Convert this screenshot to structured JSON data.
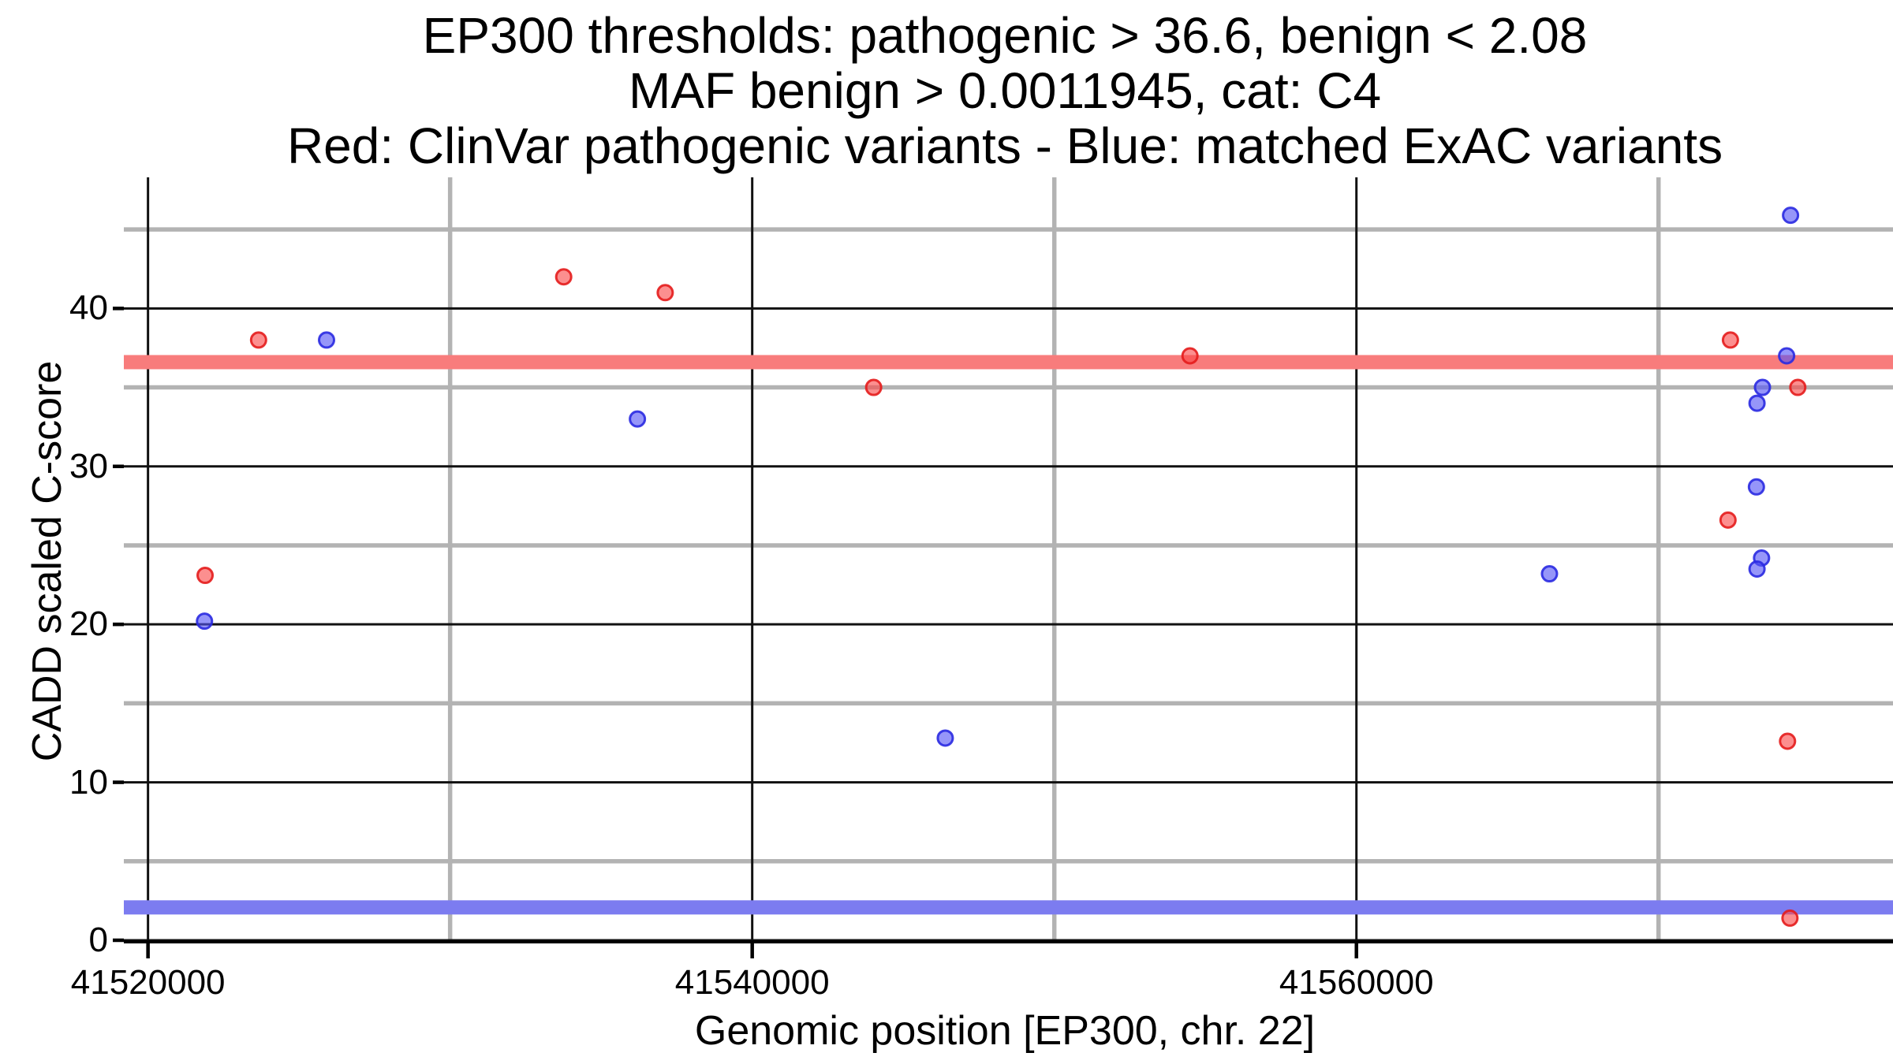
{
  "title": {
    "line1": "EP300 thresholds: pathogenic > 36.6, benign < 2.08",
    "line2": "MAF benign > 0.0011945, cat: C4",
    "line3": "Red: ClinVar pathogenic variants - Blue: matched ExAC variants"
  },
  "thresholds": {
    "pathogenic_cadd": 36.6,
    "benign_cadd": 2.08,
    "maf_benign": 0.0011945,
    "category": "C4",
    "gene": "EP300",
    "chromosome": "22"
  },
  "colors": {
    "pathogenic_band": "#F87C7C",
    "benign_band": "#7C7CF0",
    "red_point_fill": "rgba(250,75,75,0.62)",
    "red_point_stroke": "rgba(228,28,28,0.9)",
    "blue_point_fill": "rgba(85,85,245,0.62)",
    "blue_point_stroke": "rgba(42,42,225,0.9)",
    "major_grid": "#111111",
    "minor_grid": "#b3b3b3",
    "axis_line": "#000000"
  },
  "chart_data": {
    "type": "scatter",
    "title_lines": [
      "EP300 thresholds: pathogenic > 36.6, benign < 2.08",
      "MAF benign > 0.0011945, cat: C4",
      "Red: ClinVar pathogenic variants - Blue: matched ExAC variants"
    ],
    "xlabel": "Genomic position [EP300, chr. 22]",
    "ylabel": "CADD scaled C-score",
    "xlim": [
      41519200,
      41577500
    ],
    "ylim": [
      -0.2,
      48.3
    ],
    "grid": true,
    "legend_position": "none",
    "x_major_ticks": [
      41520000,
      41540000,
      41560000
    ],
    "x_major_tick_labels": [
      "41520000",
      "41540000",
      "41560000"
    ],
    "x_minor_gridlines": [
      41530000,
      41550000,
      41570000
    ],
    "y_major_ticks": [
      0,
      10,
      20,
      30,
      40
    ],
    "y_major_tick_labels": [
      "0",
      "10",
      "20",
      "30",
      "40"
    ],
    "y_minor_gridlines": [
      5,
      15,
      25,
      35,
      45
    ],
    "hlines": [
      {
        "name": "pathogenic-threshold",
        "y": 36.6,
        "color": "#F87C7C"
      },
      {
        "name": "benign-threshold",
        "y": 2.08,
        "color": "#7C7CF0"
      }
    ],
    "series": [
      {
        "name": "ClinVar pathogenic variants",
        "color": "red",
        "points": [
          {
            "x": 41521890,
            "y": 23.1
          },
          {
            "x": 41523660,
            "y": 38.0
          },
          {
            "x": 41533760,
            "y": 42.0
          },
          {
            "x": 41537120,
            "y": 41.0
          },
          {
            "x": 41544020,
            "y": 35.0
          },
          {
            "x": 41554490,
            "y": 37.0
          },
          {
            "x": 41572300,
            "y": 26.6
          },
          {
            "x": 41572380,
            "y": 38.0
          },
          {
            "x": 41574610,
            "y": 35.0
          },
          {
            "x": 41574270,
            "y": 12.6
          },
          {
            "x": 41574350,
            "y": 1.4
          }
        ]
      },
      {
        "name": "matched ExAC variants",
        "color": "blue",
        "points": [
          {
            "x": 41521870,
            "y": 20.2
          },
          {
            "x": 41525910,
            "y": 38.0
          },
          {
            "x": 41536200,
            "y": 33.0
          },
          {
            "x": 41546390,
            "y": 12.8
          },
          {
            "x": 41566390,
            "y": 23.2
          },
          {
            "x": 41574370,
            "y": 45.9
          },
          {
            "x": 41574240,
            "y": 37.0
          },
          {
            "x": 41573440,
            "y": 35.0
          },
          {
            "x": 41573260,
            "y": 34.0
          },
          {
            "x": 41573240,
            "y": 28.7
          },
          {
            "x": 41573410,
            "y": 24.2
          },
          {
            "x": 41573260,
            "y": 23.5
          }
        ]
      }
    ]
  }
}
